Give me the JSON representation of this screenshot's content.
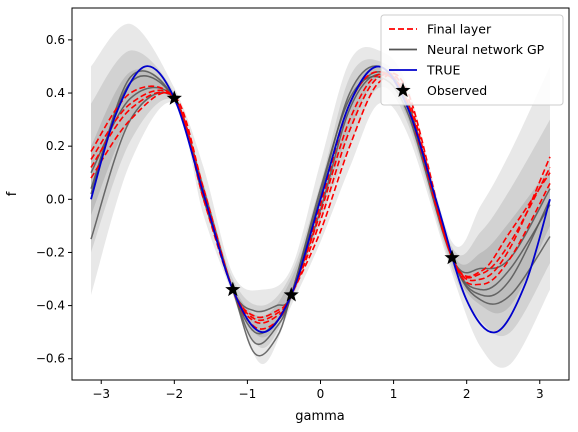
{
  "chart_data": {
    "type": "line",
    "title": "",
    "xlabel": "gamma",
    "ylabel": "f",
    "xlim": [
      -3.4,
      3.4
    ],
    "ylim": [
      -0.68,
      0.72
    ],
    "xticks": [
      -3,
      -2,
      -1,
      0,
      1,
      2,
      3
    ],
    "xtick_labels": [
      "−3",
      "−2",
      "−1",
      "0",
      "1",
      "2",
      "3"
    ],
    "yticks": [
      -0.6,
      -0.4,
      -0.2,
      0.0,
      0.2,
      0.4,
      0.6
    ],
    "ytick_labels": [
      "−0.6",
      "−0.4",
      "−0.2",
      "0.0",
      "0.2",
      "0.4",
      "0.6"
    ],
    "grid": false,
    "legend_position": "top-right",
    "legend": [
      {
        "label": "Final layer",
        "style": "dashed",
        "color": "#ff0000"
      },
      {
        "label": "Neural network GP",
        "style": "solid",
        "color": "#555555"
      },
      {
        "label": "TRUE",
        "style": "solid",
        "color": "#0000cc"
      },
      {
        "label": "Observed",
        "style": "star",
        "color": "#000000"
      }
    ],
    "true_function": {
      "name": "TRUE",
      "color": "#0000cc",
      "x": [
        -3.14,
        -2.8,
        -2.4,
        -2.0,
        -1.6,
        -1.2,
        -0.8,
        -0.4,
        0.0,
        0.4,
        0.8,
        1.2,
        1.6,
        2.0,
        2.4,
        2.8,
        3.14
      ],
      "y": [
        0.0,
        0.32,
        0.5,
        0.38,
        0.02,
        -0.34,
        -0.5,
        -0.36,
        0.0,
        0.36,
        0.5,
        0.34,
        -0.02,
        -0.38,
        -0.5,
        -0.32,
        0.0
      ]
    },
    "observed": {
      "name": "Observed",
      "x": [
        -2.0,
        -1.2,
        -0.4,
        1.8
      ],
      "y": [
        0.38,
        -0.34,
        -0.36,
        -0.22
      ]
    },
    "bands": [
      {
        "color": "#e8e8e8",
        "x": [
          -3.14,
          -2.6,
          -2.0,
          -1.6,
          -1.2,
          -0.8,
          -0.4,
          0.0,
          0.4,
          0.8,
          1.2,
          1.8,
          2.2,
          2.6,
          3.14
        ],
        "upper": [
          0.5,
          0.66,
          0.42,
          0.12,
          -0.28,
          -0.34,
          -0.26,
          0.14,
          0.52,
          0.56,
          0.42,
          -0.16,
          -0.02,
          0.18,
          0.5
        ],
        "lower": [
          -0.36,
          0.14,
          0.36,
          -0.06,
          -0.36,
          -0.62,
          -0.4,
          -0.16,
          0.12,
          0.36,
          0.24,
          -0.28,
          -0.56,
          -0.62,
          -0.34
        ]
      },
      {
        "color": "#d2d2d2",
        "x": [
          -3.14,
          -2.6,
          -2.0,
          -1.6,
          -1.2,
          -0.8,
          -0.4,
          0.0,
          0.4,
          0.8,
          1.2,
          1.8,
          2.2,
          2.6,
          3.14
        ],
        "upper": [
          0.36,
          0.56,
          0.4,
          0.06,
          -0.3,
          -0.4,
          -0.28,
          0.06,
          0.46,
          0.52,
          0.38,
          -0.18,
          -0.12,
          0.04,
          0.3
        ],
        "lower": [
          -0.2,
          0.22,
          0.37,
          0.0,
          -0.35,
          -0.56,
          -0.38,
          -0.08,
          0.2,
          0.42,
          0.28,
          -0.26,
          -0.46,
          -0.5,
          -0.24
        ]
      },
      {
        "color": "#bdbdbd",
        "x": [
          -3.14,
          -2.6,
          -2.0,
          -1.6,
          -1.2,
          -0.8,
          -0.4,
          0.0,
          0.4,
          0.8,
          1.2,
          1.8,
          2.2,
          2.6,
          3.14
        ],
        "upper": [
          0.2,
          0.48,
          0.39,
          0.03,
          -0.32,
          -0.44,
          -0.3,
          0.02,
          0.4,
          0.5,
          0.36,
          -0.2,
          -0.2,
          -0.08,
          0.12
        ],
        "lower": [
          -0.06,
          0.3,
          0.38,
          0.01,
          -0.34,
          -0.52,
          -0.36,
          -0.04,
          0.26,
          0.46,
          0.3,
          -0.24,
          -0.4,
          -0.4,
          -0.1
        ]
      }
    ],
    "final_layer": [
      {
        "x": [
          -3.14,
          -2.6,
          -2.0,
          -1.6,
          -1.2,
          -0.9,
          -0.6,
          -0.4,
          0.0,
          0.4,
          0.8,
          1.2,
          1.8,
          2.2,
          2.6,
          3.14
        ],
        "y": [
          0.18,
          0.4,
          0.38,
          0.03,
          -0.34,
          -0.46,
          -0.44,
          -0.36,
          -0.02,
          0.36,
          0.48,
          0.34,
          -0.22,
          -0.3,
          -0.18,
          0.16
        ]
      },
      {
        "x": [
          -3.14,
          -2.6,
          -2.0,
          -1.6,
          -1.2,
          -0.9,
          -0.6,
          -0.4,
          0.0,
          0.4,
          0.8,
          1.2,
          1.8,
          2.2,
          2.6,
          3.14
        ],
        "y": [
          0.12,
          0.34,
          0.38,
          0.02,
          -0.34,
          -0.44,
          -0.42,
          -0.36,
          -0.08,
          0.26,
          0.46,
          0.38,
          -0.22,
          -0.28,
          -0.16,
          0.12
        ]
      },
      {
        "x": [
          -3.14,
          -2.6,
          -2.0,
          -1.6,
          -1.2,
          -0.9,
          -0.6,
          -0.4,
          0.0,
          0.4,
          0.8,
          1.2,
          1.8,
          2.2,
          2.6,
          3.14
        ],
        "y": [
          0.08,
          0.3,
          0.39,
          0.04,
          -0.34,
          -0.48,
          -0.46,
          -0.36,
          -0.12,
          0.2,
          0.44,
          0.4,
          -0.22,
          -0.32,
          -0.22,
          0.06
        ]
      },
      {
        "x": [
          -3.14,
          -2.6,
          -2.0,
          -1.6,
          -1.2,
          -0.9,
          -0.6,
          -0.4,
          0.0,
          0.4,
          0.8,
          1.2,
          1.8,
          2.2,
          2.6,
          3.14
        ],
        "y": [
          0.15,
          0.36,
          0.38,
          0.0,
          -0.34,
          -0.45,
          -0.43,
          -0.36,
          -0.05,
          0.3,
          0.47,
          0.36,
          -0.22,
          -0.27,
          -0.12,
          0.1
        ]
      }
    ],
    "nn_gp": [
      {
        "x": [
          -3.14,
          -2.6,
          -2.0,
          -1.6,
          -1.2,
          -0.9,
          -0.6,
          -0.4,
          0.0,
          0.4,
          0.8,
          1.2,
          1.8,
          2.2,
          2.6,
          3.14
        ],
        "y": [
          -0.15,
          0.3,
          0.38,
          0.0,
          -0.34,
          -0.58,
          -0.52,
          -0.36,
          0.02,
          0.4,
          0.5,
          0.34,
          -0.22,
          -0.38,
          -0.36,
          -0.14
        ]
      },
      {
        "x": [
          -3.14,
          -2.6,
          -2.0,
          -1.6,
          -1.2,
          -0.9,
          -0.6,
          -0.4,
          0.0,
          0.4,
          0.8,
          1.2,
          1.8,
          2.2,
          2.6,
          3.14
        ],
        "y": [
          0.04,
          0.44,
          0.38,
          0.04,
          -0.34,
          -0.5,
          -0.46,
          -0.36,
          0.0,
          0.36,
          0.48,
          0.36,
          -0.22,
          -0.34,
          -0.26,
          -0.02
        ]
      },
      {
        "x": [
          -3.14,
          -2.6,
          -2.0,
          -1.6,
          -1.2,
          -0.9,
          -0.6,
          -0.4,
          0.0,
          0.4,
          0.8,
          1.2,
          1.8,
          2.2,
          2.6,
          3.14
        ],
        "y": [
          0.1,
          0.38,
          0.38,
          0.01,
          -0.34,
          -0.54,
          -0.48,
          -0.36,
          0.04,
          0.38,
          0.46,
          0.32,
          -0.22,
          -0.26,
          -0.22,
          0.04
        ]
      },
      {
        "x": [
          -3.14,
          -2.6,
          -2.0,
          -1.6,
          -1.2,
          -0.9,
          -0.6,
          -0.4,
          0.0,
          0.4,
          0.8,
          1.2,
          1.8,
          2.2,
          2.6,
          3.14
        ],
        "y": [
          0.02,
          0.46,
          0.38,
          0.02,
          -0.34,
          -0.42,
          -0.4,
          -0.36,
          -0.04,
          0.34,
          0.47,
          0.35,
          -0.22,
          -0.36,
          -0.3,
          0.0
        ]
      }
    ]
  }
}
